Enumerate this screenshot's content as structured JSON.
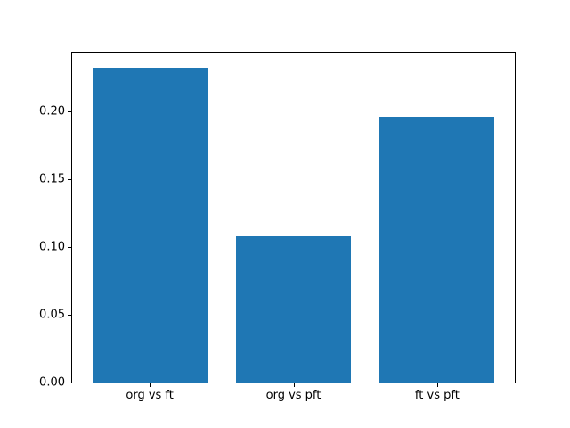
{
  "figure": {
    "background_color": "#ffffff",
    "text_color": "#000000",
    "spine_color": "#000000"
  },
  "chart_data": {
    "type": "bar",
    "title": "",
    "xlabel": "",
    "ylabel": "",
    "categories": [
      "org vs ft",
      "org vs pft",
      "ft vs pft"
    ],
    "values": [
      0.232,
      0.108,
      0.196
    ],
    "bar_color": "#1f77b4",
    "bar_width_fraction": 0.8,
    "xlim": [
      -0.54,
      2.54
    ],
    "ylim": [
      0,
      0.2435
    ],
    "yticks": [
      {
        "value": 0.0,
        "label": "0.00"
      },
      {
        "value": 0.05,
        "label": "0.05"
      },
      {
        "value": 0.1,
        "label": "0.10"
      },
      {
        "value": 0.15,
        "label": "0.15"
      },
      {
        "value": 0.2,
        "label": "0.20"
      }
    ],
    "grid": false,
    "legend": "none"
  }
}
